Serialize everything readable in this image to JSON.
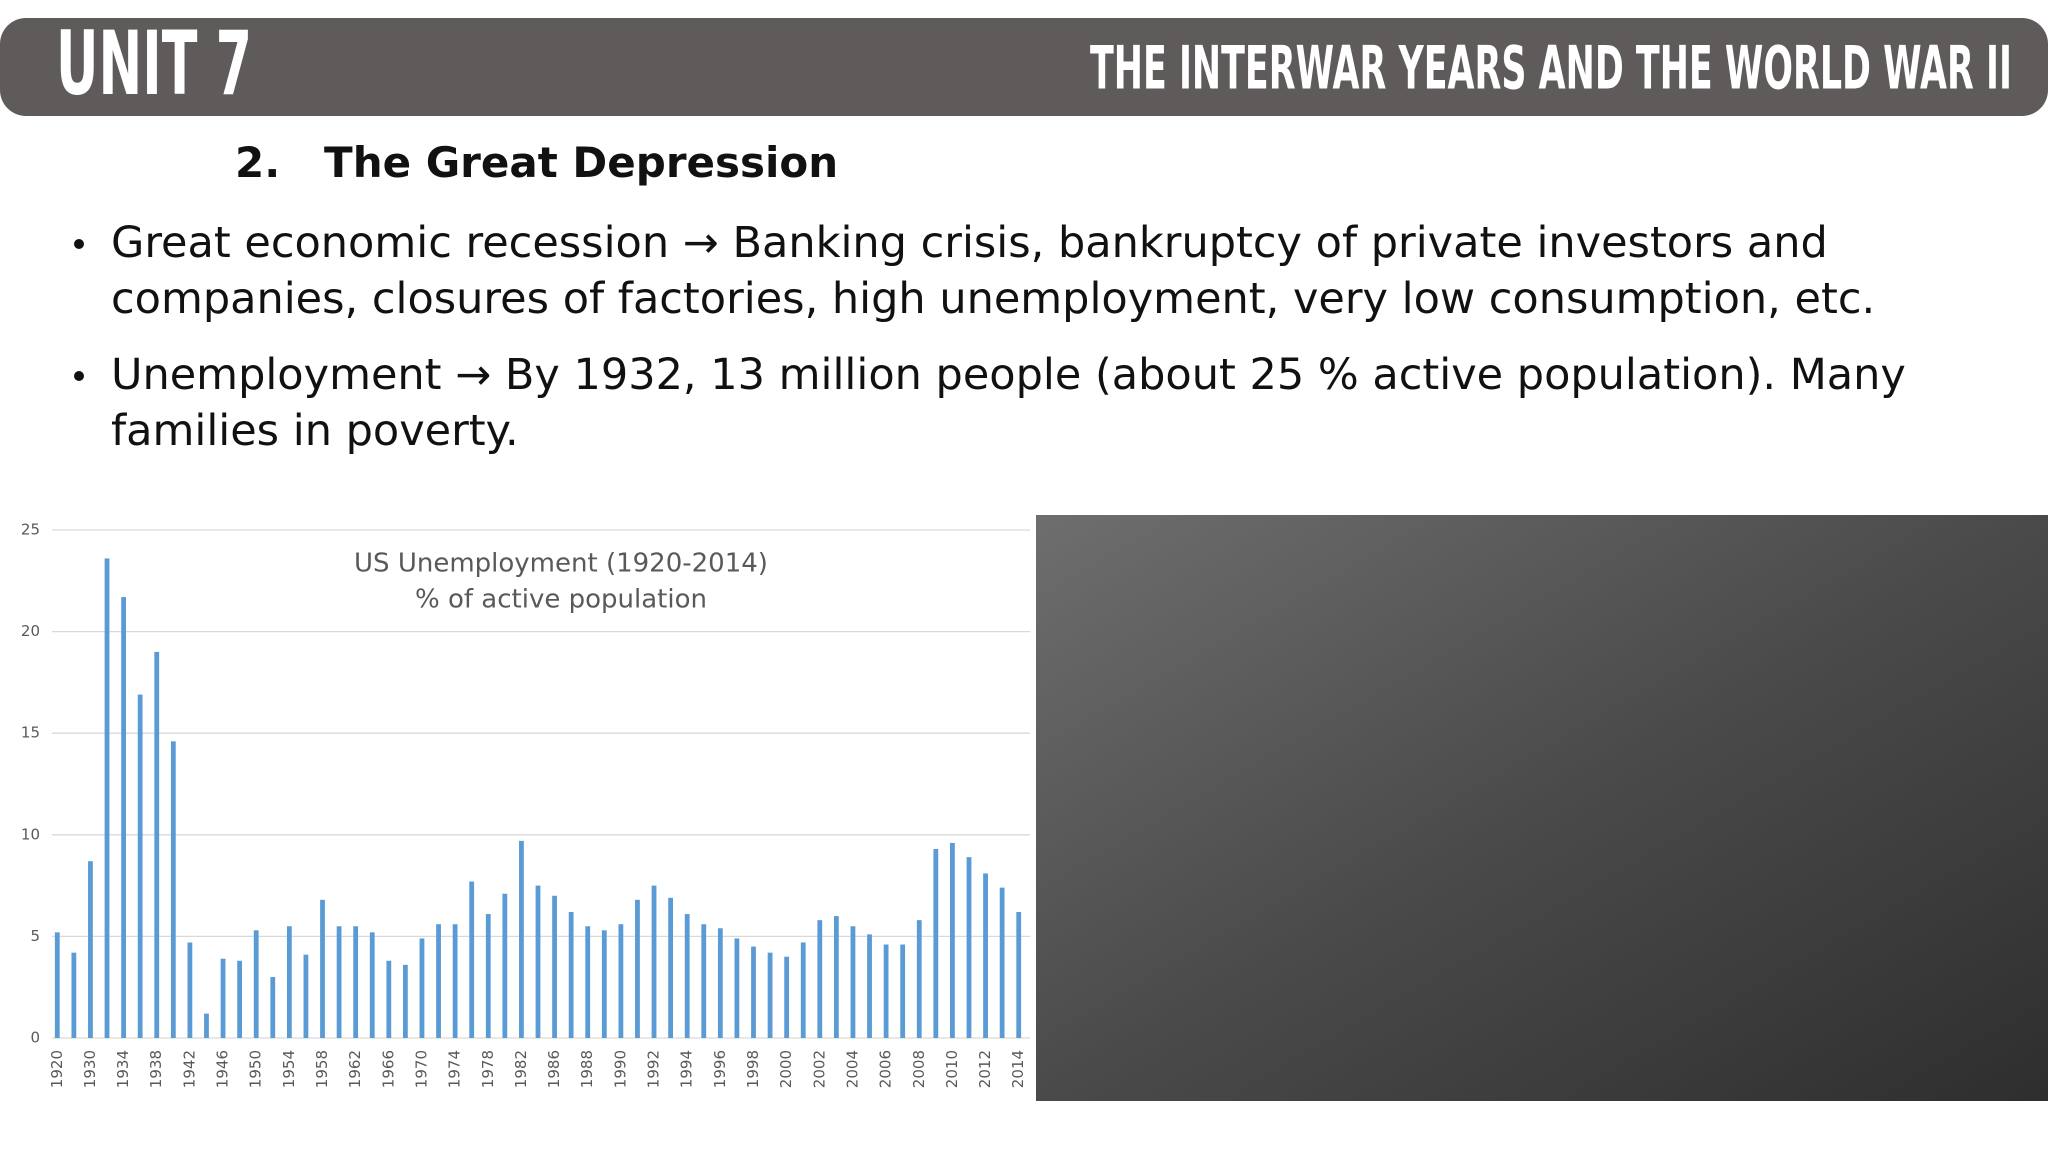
{
  "header": {
    "unit": "UNIT 7",
    "title": "THE INTERWAR YEARS AND THE WORLD WAR II"
  },
  "heading": "2.   The Great Depression",
  "bullets": [
    "Great economic recession → Banking crisis, bankruptcy of private investors and companies, closures of factories, high unemployment, very low consumption, etc.",
    "Unemployment → By 1932, 13 million people (about 25 % active population).   Many families in poverty."
  ],
  "chart_data": {
    "type": "bar",
    "title": "US Unemployment (1920-2014)",
    "subtitle": "% of active population",
    "categories": [
      "1920",
      null,
      "1930",
      null,
      "1934",
      null,
      "1938",
      null,
      "1942",
      null,
      "1946",
      null,
      "1950",
      null,
      "1954",
      null,
      "1958",
      null,
      "1962",
      null,
      "1966",
      null,
      "1970",
      null,
      "1974",
      null,
      "1978",
      null,
      "1982",
      null,
      "1986",
      null,
      "1988",
      null,
      "1990",
      null,
      "1992",
      null,
      "1994",
      null,
      "1996",
      null,
      "1998",
      null,
      "2000",
      null,
      "2002",
      null,
      "2004",
      null,
      "2006",
      null,
      "2008",
      null,
      "2010",
      null,
      "2012",
      null,
      "2014"
    ],
    "values": [
      5.2,
      4.2,
      8.7,
      23.6,
      21.7,
      16.9,
      19.0,
      14.6,
      4.7,
      1.2,
      3.9,
      3.8,
      5.3,
      3.0,
      5.5,
      4.1,
      6.8,
      5.5,
      5.5,
      5.2,
      3.8,
      3.6,
      4.9,
      5.6,
      5.6,
      7.7,
      6.1,
      7.1,
      9.7,
      7.5,
      7.0,
      6.2,
      5.5,
      5.3,
      5.6,
      6.8,
      7.5,
      6.9,
      6.1,
      5.6,
      5.4,
      4.9,
      4.5,
      4.2,
      4.0,
      4.7,
      5.8,
      6.0,
      5.5,
      5.1,
      4.6,
      4.6,
      5.8,
      9.3,
      9.6,
      8.9,
      8.1,
      7.4,
      6.2
    ],
    "color": "#5b9bd5",
    "ylim": [
      0,
      25
    ],
    "yticks": [
      0,
      5,
      10,
      15,
      20,
      25
    ],
    "grid": true
  }
}
